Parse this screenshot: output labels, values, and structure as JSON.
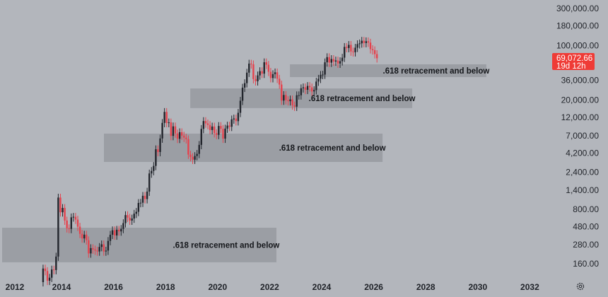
{
  "chart_data": {
    "type": "candlestick",
    "y_scale": "log",
    "ylim": [
      130,
      330000
    ],
    "xlim": [
      2011.7,
      2033.0
    ],
    "grid": false,
    "y_ticks": [
      "300,000.00",
      "180,000.00",
      "100,000.00",
      "36,000.00",
      "20,000.00",
      "12,000.00",
      "7,000.00",
      "4,200.00",
      "2,400.00",
      "1,400.00",
      "800.00",
      "480.00",
      "280.00",
      "160.00"
    ],
    "y_tick_values": [
      300000,
      180000,
      100000,
      36000,
      20000,
      12000,
      7000,
      4200,
      2400,
      1400,
      800,
      480,
      280,
      160
    ],
    "x_ticks": [
      "2012",
      "2014",
      "2016",
      "2018",
      "2020",
      "2022",
      "2024",
      "2026",
      "2028",
      "2030",
      "2032"
    ],
    "x_tick_values": [
      2012,
      2014,
      2016,
      2018,
      2020,
      2022,
      2024,
      2026,
      2028,
      2030,
      2032
    ],
    "last_price": {
      "value": "69,072.66",
      "countdown": "19d 12h",
      "price": 69072.66
    },
    "colors": {
      "up": "#22252c",
      "down": "#e5424d",
      "background": "#b3b6bc",
      "zone": "#9d a0a6",
      "last_price_bg": "#ef3b36"
    },
    "series_start": "2013-04",
    "interval": "monthly",
    "open_first": 93,
    "close": [
      139,
      129,
      97,
      106,
      135,
      133,
      198,
      1129,
      732,
      832,
      573,
      457,
      448,
      630,
      640,
      589,
      478,
      387,
      338,
      378,
      320,
      217,
      254,
      244,
      236,
      230,
      263,
      284,
      230,
      236,
      314,
      377,
      430,
      369,
      437,
      416,
      448,
      531,
      673,
      624,
      573,
      608,
      701,
      742,
      963,
      970,
      1190,
      1080,
      1348,
      2300,
      2480,
      2875,
      4703,
      4338,
      6468,
      10233,
      14156,
      10221,
      10397,
      6973,
      9240,
      7494,
      6404,
      7780,
      7037,
      6625,
      6318,
      4017,
      3742,
      3457,
      3854,
      4105,
      5350,
      8574,
      10817,
      10085,
      9630,
      8293,
      9199,
      7569,
      7193,
      9350,
      8599,
      6438,
      8658,
      9461,
      9137,
      11351,
      11655,
      10784,
      13804,
      19700,
      29001,
      33114,
      45137,
      58918,
      57750,
      37332,
      35040,
      41626,
      47166,
      43790,
      61318,
      57005,
      46306,
      38483,
      43193,
      45538,
      37714,
      31792,
      19784,
      23336,
      20050,
      19431,
      20496,
      17168,
      16548,
      23139,
      23147,
      28478,
      29268,
      27219,
      30477,
      29230,
      25940,
      26967,
      34667,
      37712,
      42265,
      42582,
      61198,
      71333,
      60637,
      67491,
      62678,
      64620,
      58970,
      63330,
      70215,
      96449,
      93429,
      102405,
      84373,
      82549,
      94207,
      104638,
      107135,
      115758,
      108236,
      114056,
      109556,
      90394,
      87500,
      78000,
      69072.66
    ],
    "annotations": [
      {
        "label": ".618 retracement and below",
        "from": 2011.7,
        "to": 2022.26,
        "price_high": 464,
        "price_low": 167
      },
      {
        "label": ".618 retracement and below",
        "from": 2015.63,
        "to": 2026.34,
        "price_high": 7460,
        "price_low": 3233
      },
      {
        "label": ".618 retracement and below",
        "from": 2018.95,
        "to": 2027.48,
        "price_high": 28300,
        "price_low": 15850
      },
      {
        "label": ".618 retracement and below",
        "from": 2022.78,
        "to": 2030.33,
        "price_high": 57700,
        "price_low": 39600
      }
    ]
  },
  "footer": {
    "settings_icon": "gear-icon"
  }
}
